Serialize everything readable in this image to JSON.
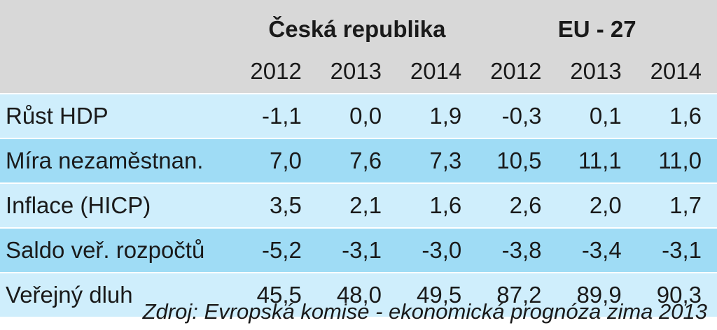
{
  "chart_data": {
    "type": "table",
    "groups": [
      "Česká republika",
      "EU - 27"
    ],
    "years": [
      "2012",
      "2013",
      "2014",
      "2012",
      "2013",
      "2014"
    ],
    "rows": [
      {
        "label": "Růst HDP",
        "values": [
          "-1,1",
          "0,0",
          "1,9",
          "-0,3",
          "0,1",
          "1,6"
        ]
      },
      {
        "label": "Míra nezaměstnan.",
        "values": [
          "7,0",
          "7,6",
          "7,3",
          "10,5",
          "11,1",
          "11,0"
        ]
      },
      {
        "label": "Inflace (HICP)",
        "values": [
          "3,5",
          "2,1",
          "1,6",
          "2,6",
          "2,0",
          "1,7"
        ]
      },
      {
        "label": "Saldo veř. rozpočtů",
        "values": [
          "-5,2",
          "-3,1",
          "-3,0",
          "-3,8",
          "-3,4",
          "-3,1"
        ]
      },
      {
        "label": "Veřejný dluh",
        "values": [
          "45,5",
          "48,0",
          "49,5",
          "87,2",
          "89,9",
          "90,3"
        ]
      }
    ],
    "source": "Zdroj: Evropská komise - ekonomická prognóza zima 2013"
  },
  "colors": {
    "header_bg": "#d8d8d8",
    "row_light": "#cfeefc",
    "row_dark": "#9fdcf5"
  }
}
